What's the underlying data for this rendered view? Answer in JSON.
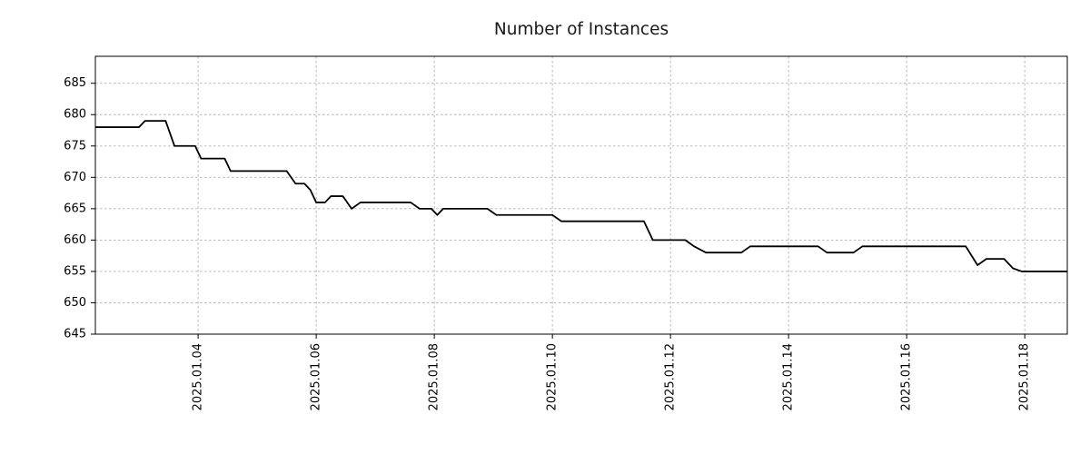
{
  "chart_data": {
    "type": "line",
    "title": "Number of Instances",
    "xlabel": "",
    "ylabel": "",
    "x_unit": "days since 2025-01-01 00:00",
    "xlim": [
      1.26,
      17.72
    ],
    "ylim": [
      645,
      689.3
    ],
    "grid": true,
    "legend": "none",
    "line_color": "#000000",
    "yticks": [
      645,
      650,
      655,
      660,
      665,
      670,
      675,
      680,
      685
    ],
    "xticks": [
      {
        "t": 3,
        "label": "2025.01.04"
      },
      {
        "t": 5,
        "label": "2025.01.06"
      },
      {
        "t": 7,
        "label": "2025.01.08"
      },
      {
        "t": 9,
        "label": "2025.01.10"
      },
      {
        "t": 11,
        "label": "2025.01.12"
      },
      {
        "t": 13,
        "label": "2025.01.14"
      },
      {
        "t": 15,
        "label": "2025.01.16"
      },
      {
        "t": 17,
        "label": "2025.01.18"
      }
    ],
    "points": [
      [
        1.26,
        678
      ],
      [
        2.0,
        678
      ],
      [
        2.1,
        679
      ],
      [
        2.45,
        679
      ],
      [
        2.6,
        675
      ],
      [
        2.95,
        675
      ],
      [
        3.05,
        673
      ],
      [
        3.45,
        673
      ],
      [
        3.55,
        671
      ],
      [
        4.5,
        671
      ],
      [
        4.65,
        669
      ],
      [
        4.8,
        669
      ],
      [
        4.9,
        668
      ],
      [
        5.0,
        666
      ],
      [
        5.15,
        666
      ],
      [
        5.25,
        667
      ],
      [
        5.45,
        667
      ],
      [
        5.6,
        665
      ],
      [
        5.75,
        666
      ],
      [
        6.6,
        666
      ],
      [
        6.75,
        665
      ],
      [
        6.95,
        665
      ],
      [
        7.05,
        664
      ],
      [
        7.15,
        665
      ],
      [
        7.9,
        665
      ],
      [
        8.05,
        664
      ],
      [
        9.0,
        664
      ],
      [
        9.15,
        663
      ],
      [
        10.55,
        663
      ],
      [
        10.7,
        660
      ],
      [
        11.25,
        660
      ],
      [
        11.4,
        659
      ],
      [
        11.6,
        658
      ],
      [
        12.2,
        658
      ],
      [
        12.35,
        659
      ],
      [
        13.5,
        659
      ],
      [
        13.65,
        658
      ],
      [
        14.1,
        658
      ],
      [
        14.25,
        659
      ],
      [
        16.0,
        659
      ],
      [
        16.2,
        656
      ],
      [
        16.35,
        657
      ],
      [
        16.65,
        657
      ],
      [
        16.8,
        655.5
      ],
      [
        16.95,
        655
      ],
      [
        17.72,
        655
      ]
    ]
  }
}
